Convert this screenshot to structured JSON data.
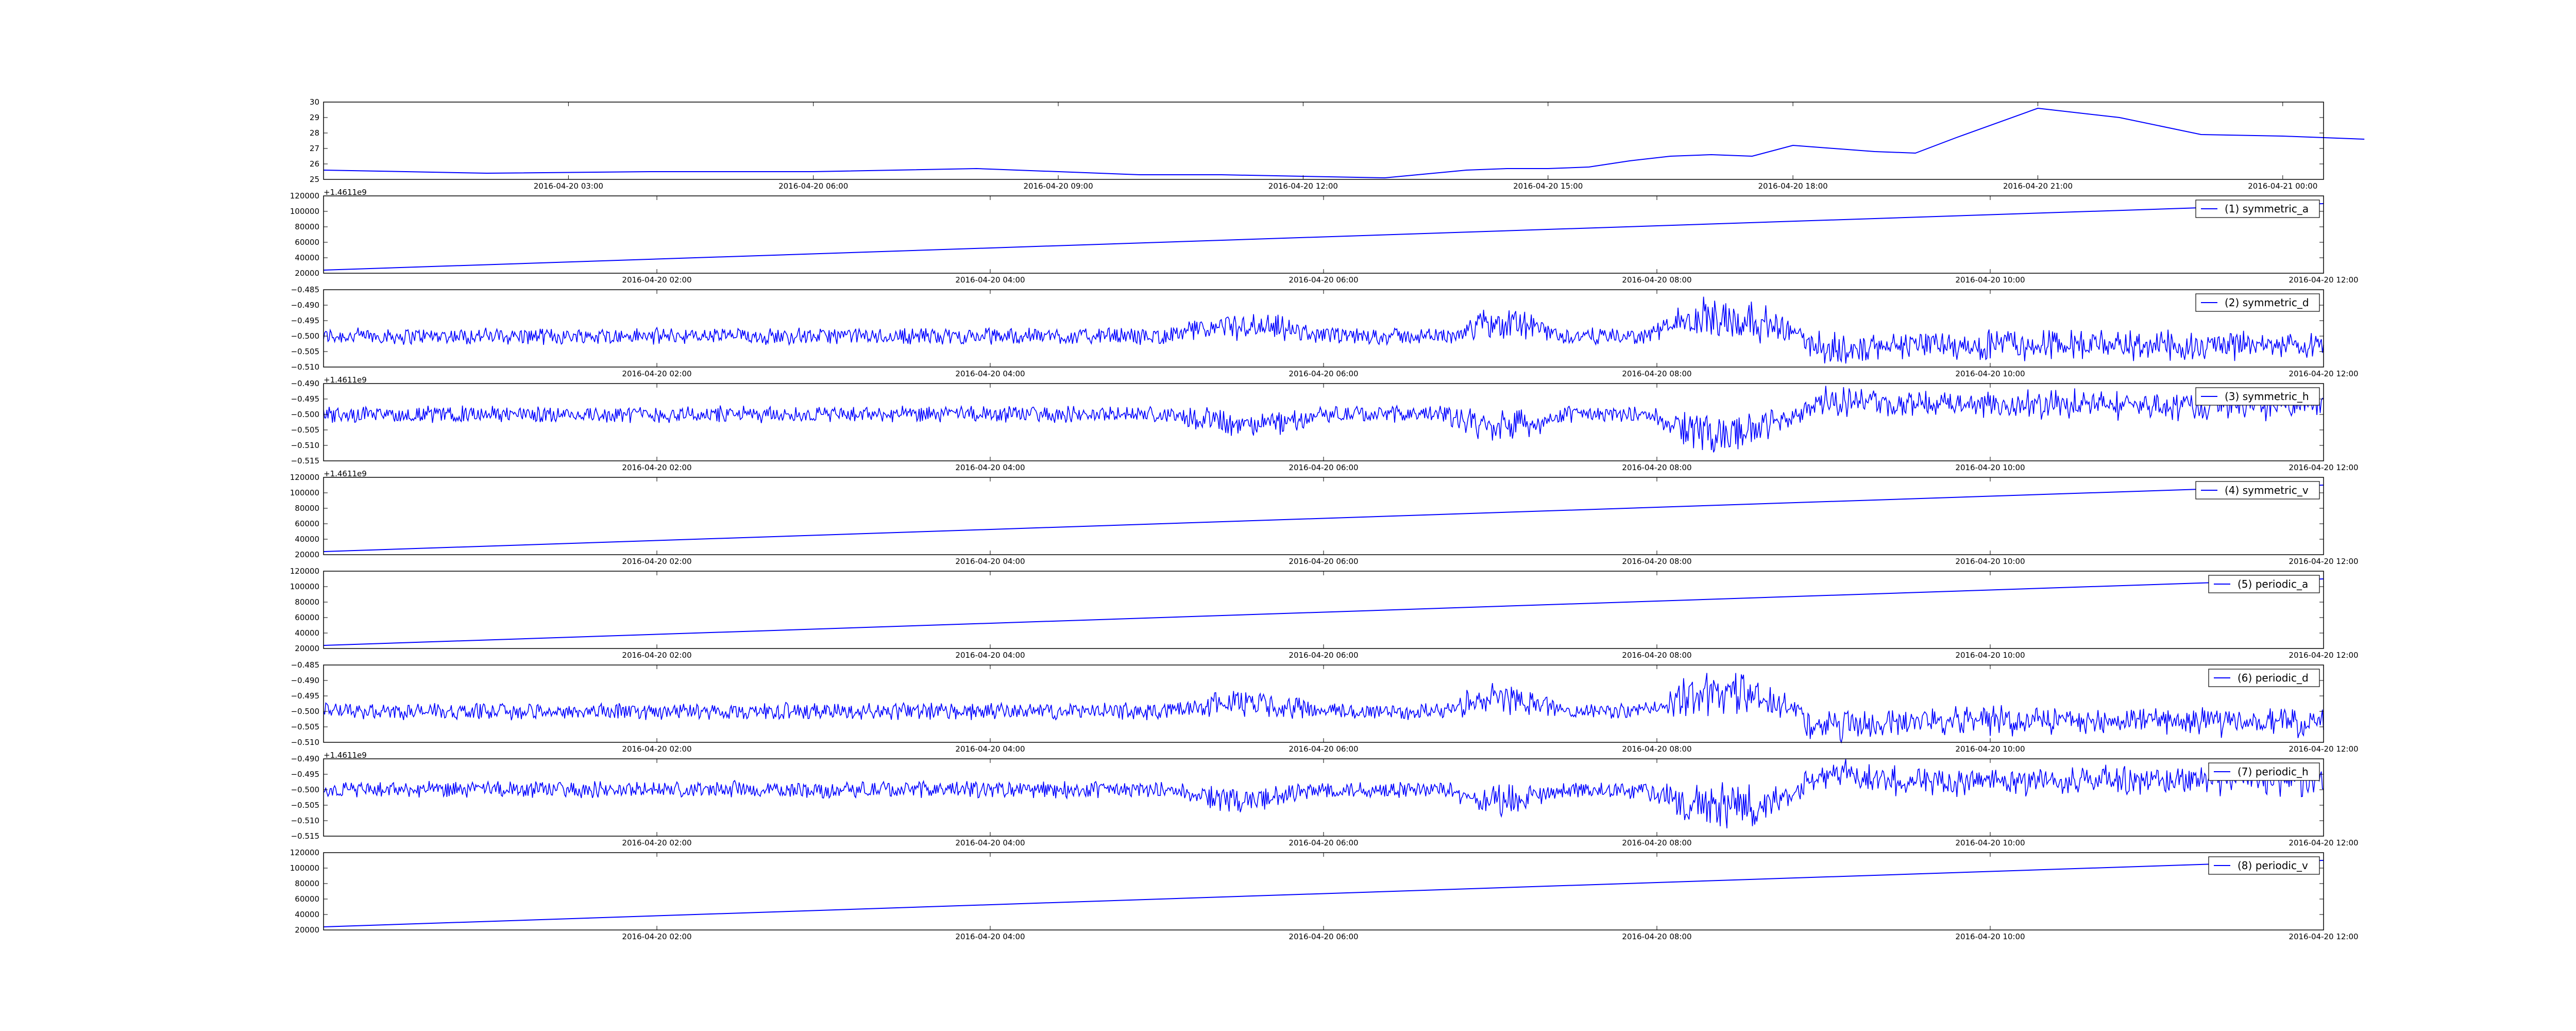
{
  "chart_data": [
    {
      "type": "line",
      "series_color": "#0000ff",
      "x": [
        "2016-04-20 00:00",
        "2016-04-20 02:00",
        "2016-04-20 04:00",
        "2016-04-20 06:00",
        "2016-04-20 08:00",
        "2016-04-20 10:00",
        "2016-04-20 11:00",
        "2016-04-20 12:00",
        "2016-04-20 13:00",
        "2016-04-20 14:00",
        "2016-04-20 14:30",
        "2016-04-20 15:00",
        "2016-04-20 15:30",
        "2016-04-20 16:00",
        "2016-04-20 16:30",
        "2016-04-20 17:00",
        "2016-04-20 17:30",
        "2016-04-20 18:00",
        "2016-04-20 18:30",
        "2016-04-20 19:00",
        "2016-04-20 19:30",
        "2016-04-20 20:00",
        "2016-04-20 21:00",
        "2016-04-20 22:00",
        "2016-04-20 23:00",
        "2016-04-21 00:00",
        "2016-04-21 01:00"
      ],
      "y": [
        25.6,
        25.4,
        25.5,
        25.5,
        25.7,
        25.3,
        25.3,
        25.2,
        25.1,
        25.6,
        25.7,
        25.7,
        25.8,
        26.2,
        26.5,
        26.6,
        26.5,
        27.2,
        27.0,
        26.8,
        26.7,
        27.7,
        29.6,
        29.0,
        27.9,
        27.8,
        27.6
      ],
      "xticks": [
        "2016-04-20 03:00",
        "2016-04-20 06:00",
        "2016-04-20 09:00",
        "2016-04-20 12:00",
        "2016-04-20 15:00",
        "2016-04-20 18:00",
        "2016-04-20 21:00",
        "2016-04-21 00:00"
      ],
      "yticks": [
        "30",
        "29",
        "28",
        "27",
        "26",
        "25"
      ],
      "ylim": [
        25,
        30
      ],
      "grid": false
    },
    {
      "type": "line",
      "legend": "(1) symmetric_a",
      "legend_placement": "top-right",
      "offset_label": "+1.4611e9",
      "x": [
        "2016-04-20 00:00",
        "2016-04-20 12:00"
      ],
      "y": [
        24000,
        110000
      ],
      "xticks": [
        "2016-04-20 02:00",
        "2016-04-20 04:00",
        "2016-04-20 06:00",
        "2016-04-20 08:00",
        "2016-04-20 10:00",
        "2016-04-20 12:00"
      ],
      "yticks": [
        "120000",
        "100000",
        "80000",
        "60000",
        "40000",
        "20000"
      ],
      "ylim": [
        20000,
        120000
      ]
    },
    {
      "type": "line",
      "legend": "(2) symmetric_d",
      "legend_placement": "top-right",
      "x": [
        "2016-04-20 00:00",
        "2016-04-20 12:00"
      ],
      "y": [
        -0.5,
        -0.5
      ],
      "noise": {
        "pattern": "symmetric_d",
        "baseline": -0.5,
        "amplitude": 0.008
      },
      "xticks": [
        "2016-04-20 02:00",
        "2016-04-20 04:00",
        "2016-04-20 06:00",
        "2016-04-20 08:00",
        "2016-04-20 10:00",
        "2016-04-20 12:00"
      ],
      "yticks": [
        "−0.485",
        "−0.490",
        "−0.495",
        "−0.500",
        "−0.505",
        "−0.510"
      ],
      "ylim": [
        -0.51,
        -0.485
      ]
    },
    {
      "type": "line",
      "legend": "(3) symmetric_h",
      "legend_placement": "top-right",
      "offset_label": "+1.4611e9",
      "x": [
        "2016-04-20 00:00",
        "2016-04-20 12:00"
      ],
      "y": [
        -0.5,
        -0.5
      ],
      "noise": {
        "pattern": "symmetric_h",
        "baseline": -0.5,
        "amplitude": 0.008
      },
      "xticks": [
        "2016-04-20 02:00",
        "2016-04-20 04:00",
        "2016-04-20 06:00",
        "2016-04-20 08:00",
        "2016-04-20 10:00",
        "2016-04-20 12:00"
      ],
      "yticks": [
        "−0.490",
        "−0.495",
        "−0.500",
        "−0.505",
        "−0.510",
        "−0.515"
      ],
      "ylim": [
        -0.515,
        -0.49
      ]
    },
    {
      "type": "line",
      "legend": "(4) symmetric_v",
      "legend_placement": "top-right",
      "offset_label": "+1.4611e9",
      "x": [
        "2016-04-20 00:00",
        "2016-04-20 12:00"
      ],
      "y": [
        24000,
        110000
      ],
      "xticks": [
        "2016-04-20 02:00",
        "2016-04-20 04:00",
        "2016-04-20 06:00",
        "2016-04-20 08:00",
        "2016-04-20 10:00",
        "2016-04-20 12:00"
      ],
      "yticks": [
        "120000",
        "100000",
        "80000",
        "60000",
        "40000",
        "20000"
      ],
      "ylim": [
        20000,
        120000
      ]
    },
    {
      "type": "line",
      "legend": "(5) periodic_a",
      "legend_placement": "top-right",
      "x": [
        "2016-04-20 00:00",
        "2016-04-20 12:00"
      ],
      "y": [
        24000,
        110000
      ],
      "xticks": [
        "2016-04-20 02:00",
        "2016-04-20 04:00",
        "2016-04-20 06:00",
        "2016-04-20 08:00",
        "2016-04-20 10:00",
        "2016-04-20 12:00"
      ],
      "yticks": [
        "120000",
        "100000",
        "80000",
        "60000",
        "40000",
        "20000"
      ],
      "ylim": [
        20000,
        120000
      ]
    },
    {
      "type": "line",
      "legend": "(6) periodic_d",
      "legend_placement": "top-right",
      "x": [
        "2016-04-20 00:00",
        "2016-04-20 12:00"
      ],
      "y": [
        -0.5,
        -0.5
      ],
      "noise": {
        "pattern": "symmetric_d",
        "baseline": -0.5,
        "amplitude": 0.008
      },
      "xticks": [
        "2016-04-20 02:00",
        "2016-04-20 04:00",
        "2016-04-20 06:00",
        "2016-04-20 08:00",
        "2016-04-20 10:00",
        "2016-04-20 12:00"
      ],
      "yticks": [
        "−0.485",
        "−0.490",
        "−0.495",
        "−0.500",
        "−0.505",
        "−0.510"
      ],
      "ylim": [
        -0.51,
        -0.485
      ]
    },
    {
      "type": "line",
      "legend": "(7) periodic_h",
      "legend_placement": "top-right",
      "offset_label": "+1.4611e9",
      "x": [
        "2016-04-20 00:00",
        "2016-04-20 12:00"
      ],
      "y": [
        -0.5,
        -0.5
      ],
      "noise": {
        "pattern": "symmetric_h",
        "baseline": -0.5,
        "amplitude": 0.008
      },
      "xticks": [
        "2016-04-20 02:00",
        "2016-04-20 04:00",
        "2016-04-20 06:00",
        "2016-04-20 08:00",
        "2016-04-20 10:00",
        "2016-04-20 12:00"
      ],
      "yticks": [
        "−0.490",
        "−0.495",
        "−0.500",
        "−0.505",
        "−0.510",
        "−0.515"
      ],
      "ylim": [
        -0.515,
        -0.49
      ]
    },
    {
      "type": "line",
      "legend": "(8) periodic_v",
      "legend_placement": "top-right",
      "x": [
        "2016-04-20 00:00",
        "2016-04-20 12:00"
      ],
      "y": [
        24000,
        110000
      ],
      "xticks": [
        "2016-04-20 02:00",
        "2016-04-20 04:00",
        "2016-04-20 06:00",
        "2016-04-20 08:00",
        "2016-04-20 10:00",
        "2016-04-20 12:00"
      ],
      "yticks": [
        "120000",
        "100000",
        "80000",
        "60000",
        "40000",
        "20000"
      ],
      "ylim": [
        20000,
        120000
      ]
    }
  ]
}
